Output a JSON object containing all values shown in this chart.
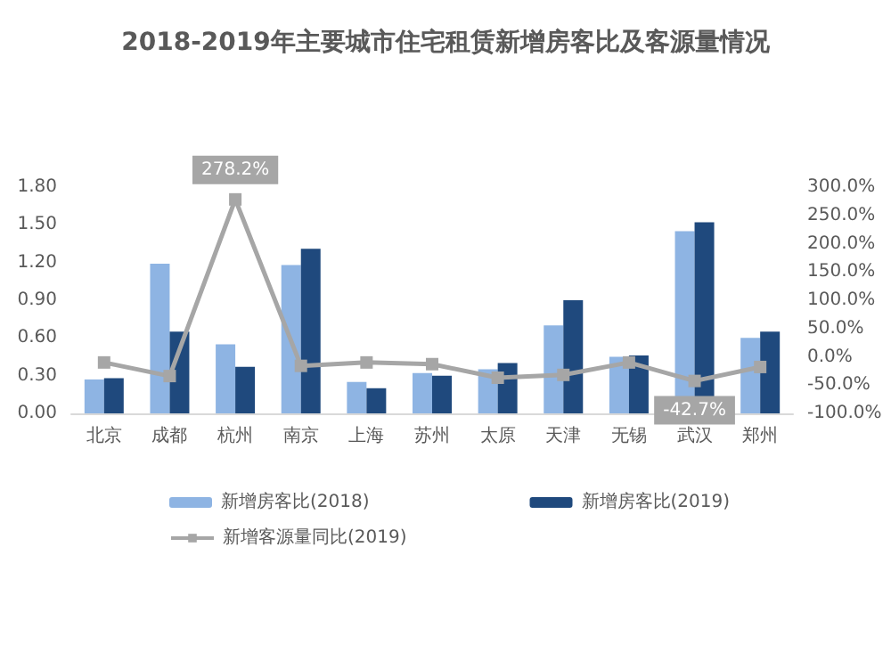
{
  "chart_data": {
    "type": "bar",
    "title": "2018-2019年主要城市住宅租赁新增房客比及客源量情况",
    "categories": [
      "北京",
      "成都",
      "杭州",
      "南京",
      "上海",
      "苏州",
      "太原",
      "天津",
      "无锡",
      "武汉",
      "郑州"
    ],
    "series": [
      {
        "name": "新增房客比(2018)",
        "color": "#8eb4e3",
        "values": [
          0.27,
          1.19,
          0.55,
          1.18,
          0.25,
          0.32,
          0.35,
          0.7,
          0.45,
          1.45,
          0.6
        ]
      },
      {
        "name": "新增房客比(2019)",
        "color": "#1f497d",
        "values": [
          0.28,
          0.65,
          0.37,
          1.31,
          0.2,
          0.3,
          0.4,
          0.9,
          0.46,
          1.52,
          0.65
        ]
      },
      {
        "name": "新增客源量同比(2019)",
        "type": "line",
        "axis": "y2",
        "color": "#a6a6a6",
        "marker": "square",
        "values": [
          -10,
          -34,
          278.2,
          -16,
          -10,
          -13,
          -37,
          -32,
          -10,
          -42.7,
          -18
        ],
        "value_labels": [
          null,
          null,
          "278.2%",
          null,
          null,
          null,
          null,
          null,
          null,
          "-42.7%",
          null
        ]
      }
    ],
    "ylim": [
      0,
      1.8
    ],
    "yticks": [
      {
        "value": 0,
        "label": "0.00"
      },
      {
        "value": 0.3,
        "label": "0.30"
      },
      {
        "value": 0.6,
        "label": "0.60"
      },
      {
        "value": 0.9,
        "label": "0.90"
      },
      {
        "value": 1.2,
        "label": "1.20"
      },
      {
        "value": 1.5,
        "label": "1.50"
      },
      {
        "value": 1.8,
        "label": "1.80"
      }
    ],
    "y2lim": [
      -100,
      300
    ],
    "y2ticks": [
      {
        "value": -100,
        "label": "-100.0%"
      },
      {
        "value": -50,
        "label": "-50.0%"
      },
      {
        "value": 0,
        "label": "0.0%"
      },
      {
        "value": 50,
        "label": "50.0%"
      },
      {
        "value": 100,
        "label": "100.0%"
      },
      {
        "value": 150,
        "label": "150.0%"
      },
      {
        "value": 200,
        "label": "200.0%"
      },
      {
        "value": 250,
        "label": "250.0%"
      },
      {
        "value": 300,
        "label": "300.0%"
      }
    ],
    "legend": "bottom"
  }
}
